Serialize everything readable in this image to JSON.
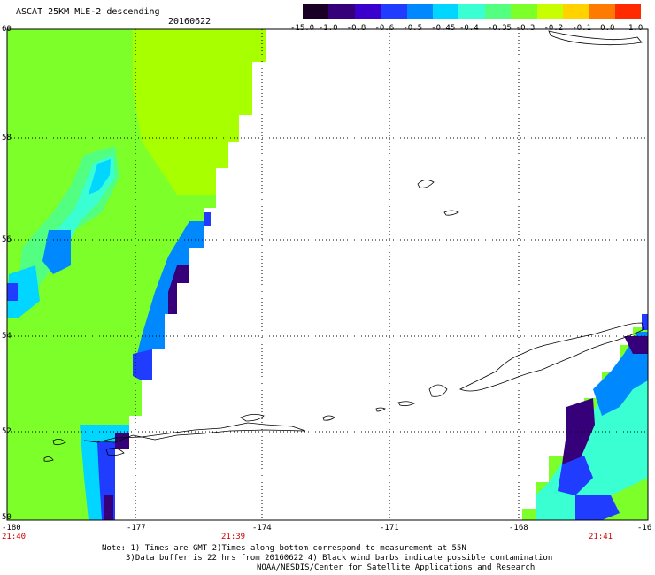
{
  "header": {
    "title": "ASCAT 25KM MLE-2 descending",
    "date": "20160622"
  },
  "colorbar": {
    "labels": [
      "-15.0",
      "-1.0",
      "-0.8",
      "-0.6",
      "-0.5",
      "-0.45",
      "-0.4",
      "-0.35",
      "-0.3",
      "-0.2",
      "-0.1",
      "0.0",
      "1.0"
    ],
    "colors": [
      "#1a0026",
      "#35007a",
      "#3a00cc",
      "#1f3cff",
      "#0088ff",
      "#00d6ff",
      "#39ffd2",
      "#52ff80",
      "#7dff2a",
      "#c8ff00",
      "#ffd200",
      "#ff7a00",
      "#ff2a00"
    ]
  },
  "axes": {
    "lat_labels": [
      "60",
      "58",
      "56",
      "54",
      "52",
      "50"
    ],
    "lon_labels": [
      "-180",
      "-177",
      "-174",
      "-171",
      "-168",
      "-16"
    ],
    "time_labels": [
      "21:40",
      "21:39",
      "21:41"
    ]
  },
  "notes": {
    "line1": "Note: 1) Times are GMT 2)Times along bottom correspond to measurement at 55N",
    "line2": "3)Data buffer is 22 hrs from 20160622 4) Black wind barbs indicate possible contamination",
    "line3": "NOAA/NESDIS/Center for Satellite Applications and Research"
  },
  "legend_colors": {
    "green": "#7dff2a",
    "lime": "#a8ff00",
    "cyan": "#00ffff",
    "aqua": "#39ffd2",
    "blue": "#0088ff",
    "darkblue": "#1f3cff",
    "purple": "#35007a"
  }
}
